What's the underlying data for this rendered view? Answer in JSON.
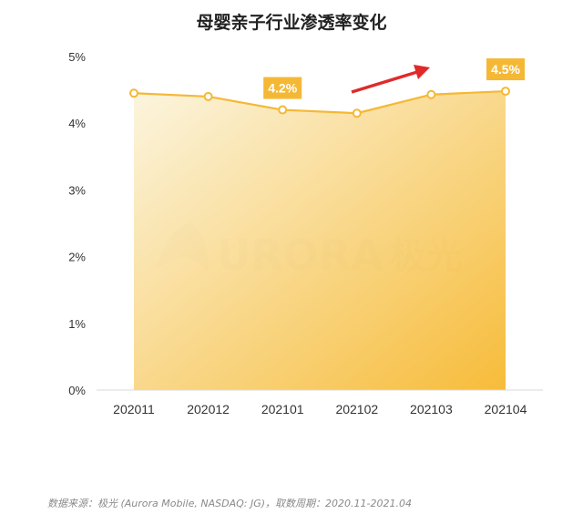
{
  "title": "母婴亲子行业渗透率变化",
  "source": "数据来源：极光 (Aurora Mobile, NASDAQ: JG)，取数周期：2020.11-2021.04",
  "watermark": {
    "text": "URORA",
    "cn": "极光"
  },
  "colors": {
    "line": "#f5b835",
    "marker_fill": "#ffffff",
    "label_bg": "#f5b835",
    "label_text": "#ffffff",
    "arrow": "#e02a2a",
    "area_light": "#fbf4dc",
    "area_dark": "#f6b629",
    "axis_text": "#333333",
    "axis_line": "#d9d9d9"
  },
  "chart_data": {
    "type": "area",
    "title": "母婴亲子行业渗透率变化",
    "categories": [
      "202011",
      "202012",
      "202101",
      "202102",
      "202103",
      "202104"
    ],
    "series": [
      {
        "values": [
          4.45,
          4.4,
          4.2,
          4.15,
          4.43,
          4.48
        ]
      }
    ],
    "yticks": [
      "0%",
      "1%",
      "2%",
      "3%",
      "4%",
      "5%"
    ],
    "ylim": [
      0,
      5
    ],
    "data_labels": [
      {
        "index": 2,
        "text": "4.2%"
      },
      {
        "index": 5,
        "text": "4.5%"
      }
    ],
    "annotation": "upward-trend-arrow",
    "grid": false,
    "xlabel": "",
    "ylabel": ""
  }
}
